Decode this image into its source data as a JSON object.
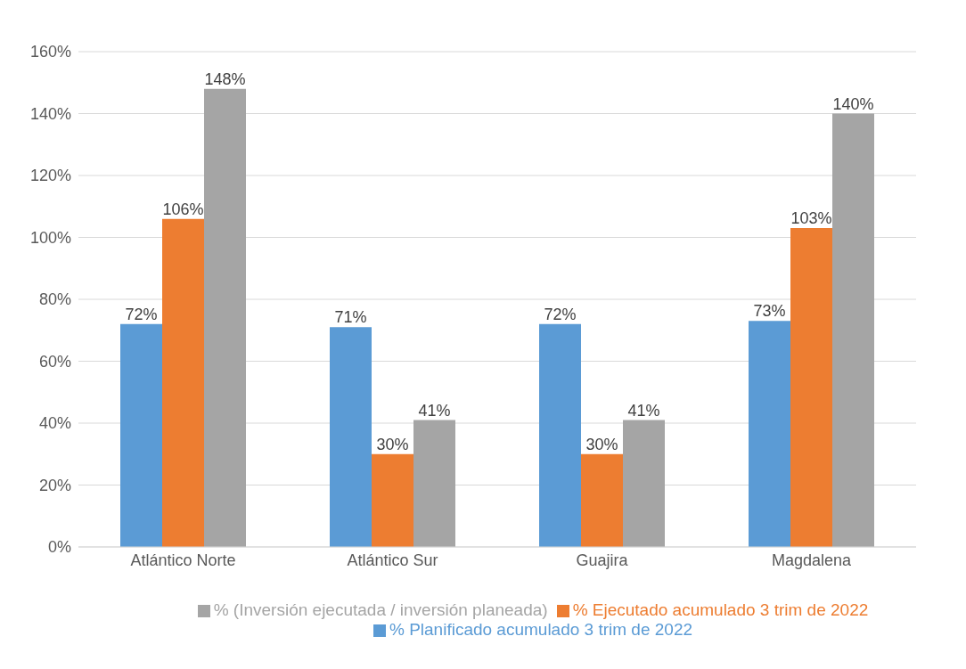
{
  "chart_data": {
    "type": "bar",
    "categories": [
      "Atlántico Norte",
      "Atlántico Sur",
      "Guajira",
      "Magdalena"
    ],
    "series": [
      {
        "name": "% Planificado acumulado 3 trim de 2022",
        "color": "#5b9bd5",
        "values": [
          72,
          71,
          72,
          73
        ],
        "value_labels": [
          "72%",
          "71%",
          "72%",
          "73%"
        ]
      },
      {
        "name": "% Ejecutado acumulado 3 trim de 2022",
        "color": "#ed7d31",
        "values": [
          106,
          30,
          30,
          103
        ],
        "value_labels": [
          "106%",
          "30%",
          "30%",
          "103%"
        ]
      },
      {
        "name": "% (Inversión ejecutada / inversión planeada)",
        "color": "#a5a5a5",
        "values": [
          148,
          41,
          41,
          140
        ],
        "value_labels": [
          "148%",
          "41%",
          "41%",
          "140%"
        ]
      }
    ],
    "ylim": [
      0,
      160
    ],
    "yticks": [
      {
        "value": 0,
        "label": "0%"
      },
      {
        "value": 20,
        "label": "20%"
      },
      {
        "value": 40,
        "label": "40%"
      },
      {
        "value": 60,
        "label": "60%"
      },
      {
        "value": 80,
        "label": "80%"
      },
      {
        "value": 100,
        "label": "100%"
      },
      {
        "value": 120,
        "label": "120%"
      },
      {
        "value": 140,
        "label": "140%"
      },
      {
        "value": 160,
        "label": "160%"
      }
    ],
    "grid": "y",
    "legend": "bottom"
  }
}
